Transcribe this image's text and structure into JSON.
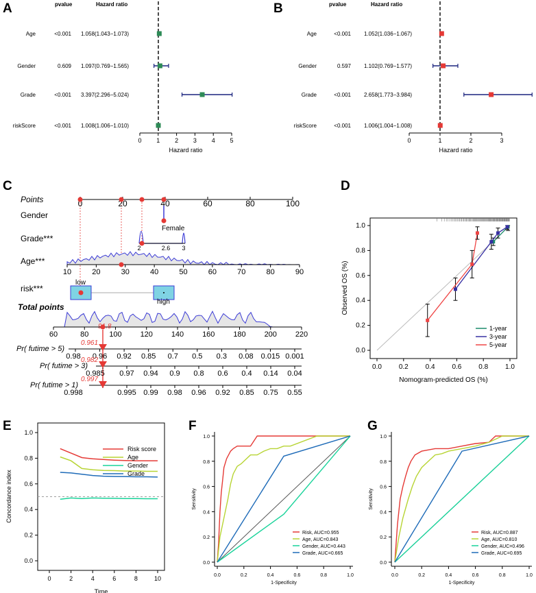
{
  "panels": {
    "A": {
      "letter": "A",
      "header_p": "pvalue",
      "header_hr": "Hazard ratio",
      "rows": [
        {
          "label": "Age",
          "p": "<0.001",
          "hr_text": "1.058(1.043−1.073)",
          "hr": 1.058,
          "lo": 1.043,
          "hi": 1.073
        },
        {
          "label": "Gender",
          "p": "0.609",
          "hr_text": "1.097(0.769−1.565)",
          "hr": 1.097,
          "lo": 0.769,
          "hi": 1.565
        },
        {
          "label": "Grade",
          "p": "<0.001",
          "hr_text": "3.397(2.296−5.024)",
          "hr": 3.397,
          "lo": 2.296,
          "hi": 5.024
        },
        {
          "label": "riskScore",
          "p": "<0.001",
          "hr_text": "1.008(1.006−1.010)",
          "hr": 1.008,
          "lo": 1.006,
          "hi": 1.01
        }
      ],
      "ticks": [
        "0",
        "1",
        "2",
        "3",
        "4",
        "5"
      ],
      "xmax": 5,
      "xlabel": "Hazard ratio",
      "marker_color": "#2e8b57",
      "line_color": "#1a237e"
    },
    "B": {
      "letter": "B",
      "header_p": "pvalue",
      "header_hr": "Hazard ratio",
      "rows": [
        {
          "label": "Age",
          "p": "<0.001",
          "hr_text": "1.052(1.036−1.067)",
          "hr": 1.052,
          "lo": 1.036,
          "hi": 1.067
        },
        {
          "label": "Gender",
          "p": "0.597",
          "hr_text": "1.102(0.769−1.577)",
          "hr": 1.102,
          "lo": 0.769,
          "hi": 1.577
        },
        {
          "label": "Grade",
          "p": "<0.001",
          "hr_text": "2.658(1.773−3.984)",
          "hr": 2.658,
          "lo": 1.773,
          "hi": 3.984
        },
        {
          "label": "riskScore",
          "p": "<0.001",
          "hr_text": "1.006(1.004−1.008)",
          "hr": 1.006,
          "lo": 1.004,
          "hi": 1.008
        }
      ],
      "ticks": [
        "0",
        "1",
        "2",
        "3"
      ],
      "xmax": 3,
      "xlabel": "Hazard ratio",
      "marker_color": "#e53935",
      "line_color": "#1a237e"
    },
    "C": {
      "letter": "C",
      "points_label": "Points",
      "points_ticks": [
        "0",
        "20",
        "40",
        "60",
        "80",
        "100"
      ],
      "gender_label": "Gender",
      "gender_level": "Female",
      "grade_label": "Grade***",
      "grade_ticks": [
        "2",
        "2.6",
        "3"
      ],
      "age_label": "Age***",
      "age_ticks": [
        "10",
        "20",
        "30",
        "40",
        "50",
        "60",
        "70",
        "80",
        "90"
      ],
      "risk_label": "risk***",
      "risk_low": "low",
      "risk_high": "high",
      "total_label": "Total points",
      "total_ticks": [
        "60",
        "80",
        "100",
        "120",
        "140",
        "160",
        "180",
        "200",
        "220"
      ],
      "total_value": "91.8",
      "pr5_label": "Pr( futime > 5)",
      "pr5_ticks": [
        "0.98",
        "0.96",
        "0.92",
        "0.85",
        "0.7",
        "0.5",
        "0.3",
        "0.08",
        "0.015",
        "0.001"
      ],
      "pr5_value": "0.961",
      "pr3_label": "Pr( futime > 3)",
      "pr3_ticks": [
        "0.985",
        "0.97",
        "0.94",
        "0.9",
        "0.8",
        "0.6",
        "0.4",
        "0.14",
        "0.04"
      ],
      "pr3_value": "0.982",
      "pr1_label": "Pr( futime > 1)",
      "pr1_ticks": [
        "0.998",
        "0.995",
        "0.99",
        "0.98",
        "0.96",
        "0.92",
        "0.85",
        "0.75",
        "0.55"
      ],
      "pr1_value": "0.997"
    }
  },
  "chart_data": [
    {
      "type": "forest",
      "panel": "A",
      "title": "",
      "xlabel": "Hazard ratio",
      "xlim": [
        0,
        5
      ],
      "categories": [
        "Age",
        "Gender",
        "Grade",
        "riskScore"
      ],
      "hr": [
        1.058,
        1.097,
        3.397,
        1.008
      ],
      "lower": [
        1.043,
        0.769,
        2.296,
        1.006
      ],
      "upper": [
        1.073,
        1.565,
        5.024,
        1.01
      ],
      "pvalue": [
        "<0.001",
        "0.609",
        "<0.001",
        "<0.001"
      ]
    },
    {
      "type": "forest",
      "panel": "B",
      "title": "",
      "xlabel": "Hazard ratio",
      "xlim": [
        0,
        3
      ],
      "categories": [
        "Age",
        "Gender",
        "Grade",
        "riskScore"
      ],
      "hr": [
        1.052,
        1.102,
        2.658,
        1.006
      ],
      "lower": [
        1.036,
        0.769,
        1.773,
        1.004
      ],
      "upper": [
        1.067,
        1.577,
        3.984,
        1.008
      ],
      "pvalue": [
        "<0.001",
        "0.597",
        "<0.001",
        "<0.001"
      ]
    },
    {
      "type": "line",
      "panel": "D",
      "xlabel": "Nomogram-predicted OS (%)",
      "ylabel": "Observed OS (%)",
      "xlim": [
        0,
        1.0
      ],
      "ylim": [
        0,
        1.0
      ],
      "ticks": [
        "0.0",
        "0.2",
        "0.4",
        "0.6",
        "0.8",
        "1.0"
      ],
      "legend": "bottom-right",
      "series": [
        {
          "name": "1-year",
          "color": "#1b8a6b",
          "points": [
            [
              0.875,
              0.87
            ],
            [
              0.985,
              0.99
            ]
          ],
          "err": [
            0.03,
            0.03
          ]
        },
        {
          "name": "3-year",
          "color": "#3730a3",
          "points": [
            [
              0.59,
              0.49
            ],
            [
              0.86,
              0.87
            ],
            [
              0.91,
              0.94
            ],
            [
              0.98,
              0.99
            ]
          ],
          "err": [
            0.09,
            0.06,
            0.04,
            0.02
          ]
        },
        {
          "name": "5-year",
          "color": "#ef4444",
          "points": [
            [
              0.38,
              0.24
            ],
            [
              0.715,
              0.69
            ],
            [
              0.755,
              0.94
            ]
          ],
          "err": [
            0.13,
            0.11,
            0.05
          ]
        }
      ]
    },
    {
      "type": "line",
      "panel": "E",
      "xlabel": "Time",
      "ylabel": "Concordance index",
      "xlim": [
        0,
        10
      ],
      "ylim": [
        0,
        1.0
      ],
      "xticks": [
        "0",
        "2",
        "4",
        "6",
        "8",
        "10"
      ],
      "yticks": [
        "0.0",
        "0.2",
        "0.4",
        "0.6",
        "0.8",
        "1.0"
      ],
      "reference": 0.5,
      "legend": "top-right",
      "series": [
        {
          "name": "Risk score",
          "color": "#e53935",
          "x": [
            1,
            2,
            3,
            4,
            5,
            6,
            7,
            8,
            9,
            10
          ],
          "values": [
            0.875,
            0.84,
            0.805,
            0.795,
            0.79,
            0.785,
            0.782,
            0.78,
            0.78,
            0.78
          ]
        },
        {
          "name": "Age",
          "color": "#b7d433",
          "x": [
            1,
            2,
            3,
            4,
            5,
            6,
            7,
            8,
            9,
            10
          ],
          "values": [
            0.81,
            0.78,
            0.72,
            0.71,
            0.705,
            0.703,
            0.7,
            0.7,
            0.698,
            0.698
          ]
        },
        {
          "name": "Gender",
          "color": "#19d39a",
          "x": [
            1,
            2,
            3,
            4,
            5,
            6,
            7,
            8,
            9,
            10
          ],
          "values": [
            0.48,
            0.49,
            0.485,
            0.49,
            0.488,
            0.487,
            0.485,
            0.485,
            0.484,
            0.484
          ]
        },
        {
          "name": "Grade",
          "color": "#1e6bb8",
          "x": [
            1,
            2,
            3,
            4,
            5,
            6,
            7,
            8,
            9,
            10
          ],
          "values": [
            0.69,
            0.685,
            0.675,
            0.665,
            0.66,
            0.658,
            0.657,
            0.655,
            0.655,
            0.653
          ]
        }
      ]
    },
    {
      "type": "line",
      "panel": "F",
      "xlabel": "1-Specificity",
      "ylabel": "Sensitivity",
      "xlim": [
        0,
        1
      ],
      "ylim": [
        0,
        1
      ],
      "ticks": [
        "0.0",
        "0.2",
        "0.4",
        "0.6",
        "0.8",
        "1.0"
      ],
      "legend": "bottom-right",
      "series": [
        {
          "name": "Risk, AUC=0.955",
          "color": "#e53935",
          "x": [
            0,
            0.01,
            0.02,
            0.03,
            0.04,
            0.05,
            0.07,
            0.1,
            0.12,
            0.15,
            0.2,
            0.25,
            0.3,
            1.0
          ],
          "values": [
            0,
            0.15,
            0.4,
            0.55,
            0.65,
            0.75,
            0.82,
            0.88,
            0.9,
            0.92,
            0.92,
            0.92,
            1.0,
            1.0
          ]
        },
        {
          "name": "Age, AUC=0.843",
          "color": "#b7d433",
          "x": [
            0,
            0.02,
            0.05,
            0.08,
            0.1,
            0.12,
            0.15,
            0.18,
            0.2,
            0.25,
            0.3,
            0.35,
            0.4,
            0.45,
            0.5,
            0.55,
            0.75,
            1.0
          ],
          "values": [
            0,
            0.2,
            0.35,
            0.5,
            0.62,
            0.7,
            0.76,
            0.78,
            0.8,
            0.85,
            0.85,
            0.88,
            0.9,
            0.9,
            0.92,
            0.92,
            1.0,
            1.0
          ]
        },
        {
          "name": "Gender, AUC=0.443",
          "color": "#19d39a",
          "x": [
            0,
            0.5,
            1.0
          ],
          "values": [
            0,
            0.38,
            1.0
          ]
        },
        {
          "name": "Grade, AUC=0.665",
          "color": "#1e6bb8",
          "x": [
            0,
            0.5,
            1.0
          ],
          "values": [
            0,
            0.84,
            1.0
          ]
        }
      ]
    },
    {
      "type": "line",
      "panel": "G",
      "xlabel": "1-Specificity",
      "ylabel": "Sensitivity",
      "xlim": [
        0,
        1
      ],
      "ylim": [
        0,
        1
      ],
      "ticks": [
        "0.0",
        "0.2",
        "0.4",
        "0.6",
        "0.8",
        "1.0"
      ],
      "legend": "bottom-right",
      "series": [
        {
          "name": "Risk, AUC=0.887",
          "color": "#e53935",
          "x": [
            0,
            0.02,
            0.04,
            0.06,
            0.08,
            0.1,
            0.12,
            0.15,
            0.2,
            0.3,
            0.4,
            0.5,
            0.6,
            0.7,
            0.75,
            1.0
          ],
          "values": [
            0,
            0.3,
            0.5,
            0.6,
            0.68,
            0.75,
            0.8,
            0.85,
            0.88,
            0.9,
            0.9,
            0.92,
            0.94,
            0.95,
            1.0,
            1.0
          ]
        },
        {
          "name": "Age, AUC=0.810",
          "color": "#b7d433",
          "x": [
            0,
            0.03,
            0.06,
            0.1,
            0.13,
            0.16,
            0.2,
            0.25,
            0.3,
            0.35,
            0.4,
            0.5,
            0.6,
            0.7,
            0.8,
            1.0
          ],
          "values": [
            0,
            0.2,
            0.35,
            0.5,
            0.6,
            0.68,
            0.75,
            0.8,
            0.85,
            0.86,
            0.88,
            0.9,
            0.92,
            0.95,
            1.0,
            1.0
          ]
        },
        {
          "name": "Gender, AUC=0.496",
          "color": "#19d39a",
          "x": [
            0,
            1.0
          ],
          "values": [
            0,
            1.0
          ]
        },
        {
          "name": "Grade, AUC=0.695",
          "color": "#1e6bb8",
          "x": [
            0,
            0.5,
            1.0
          ],
          "values": [
            0,
            0.88,
            1.0
          ]
        }
      ]
    }
  ]
}
